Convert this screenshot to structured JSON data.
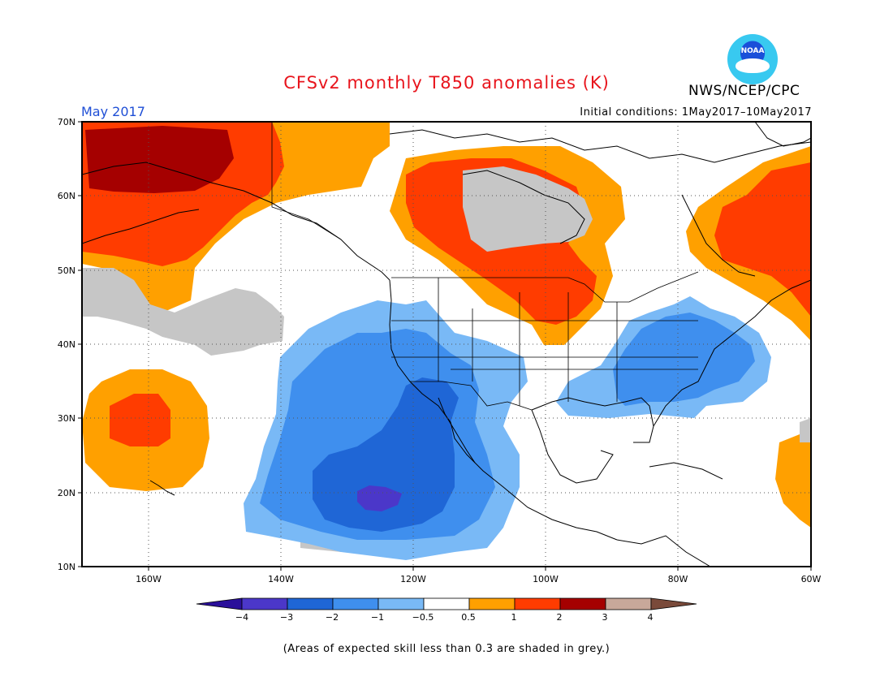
{
  "header": {
    "title": "CFSv2 monthly T850 anomalies (K)",
    "agency": "NWS/NCEP/CPC",
    "period": "May 2017",
    "initial_conditions": "Initial conditions: 1May2017–10May2017",
    "logo_text": "NOAA"
  },
  "map": {
    "lat_labels": [
      "70N",
      "60N",
      "50N",
      "40N",
      "30N",
      "20N",
      "10N"
    ],
    "lon_labels": [
      "160W",
      "140W",
      "120W",
      "100W",
      "80W",
      "60W"
    ]
  },
  "colorbar": {
    "tick_labels": [
      "−4",
      "−3",
      "−2",
      "−1",
      "−0.5",
      "0.5",
      "1",
      "2",
      "3",
      "4"
    ],
    "colors": [
      "#2a0f9a",
      "#4b37c9",
      "#1f66d6",
      "#3f8fee",
      "#79b9f6",
      "#ffffff",
      "#ffa000",
      "#ff3c00",
      "#a50000",
      "#c8a89a",
      "#7a4a3a"
    ]
  },
  "colors": {
    "grey_skill": "#c6c6c6",
    "orange": "#ffa000",
    "red": "#ff3c00",
    "darkred": "#a50000",
    "lightblue": "#79b9f6",
    "blue": "#3f8fee",
    "midblue": "#1f66d6",
    "purple": "#4b37c9"
  },
  "footnote": "(Areas of expected skill less than 0.3 are shaded in grey.)"
}
